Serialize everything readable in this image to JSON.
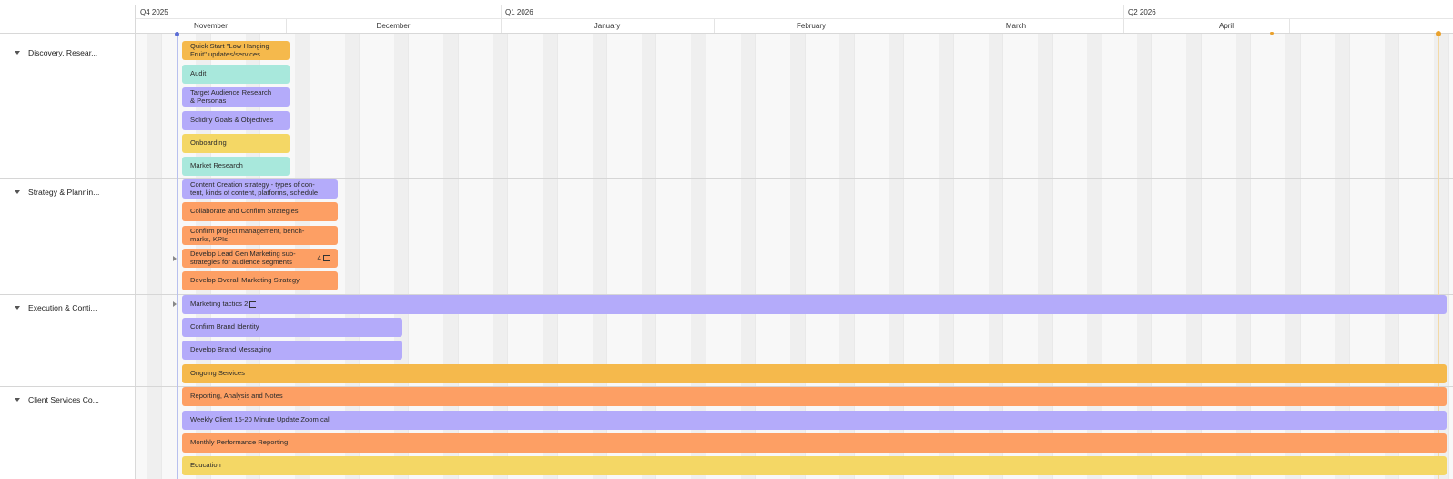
{
  "timeline": {
    "quarters": [
      "Q4 2025",
      "Q1 2026",
      "Q2 2026"
    ],
    "months": [
      "November",
      "December",
      "January",
      "February",
      "March",
      "April"
    ],
    "groups": [
      {
        "label": "Discovery, Resear...",
        "collapsed": false
      },
      {
        "label": "Strategy & Plannin...",
        "collapsed": false
      },
      {
        "label": "Execution & Conti...",
        "collapsed": false
      },
      {
        "label": "Client Services Co...",
        "collapsed": false
      }
    ],
    "tasks": [
      {
        "label": "Quick Start \"Low Hanging\nFruit\" updates/services",
        "color": "#f5b94c"
      },
      {
        "label": "Audit",
        "color": "#a8e8dc"
      },
      {
        "label": "Target Audience Research\n& Personas",
        "color": "#b4abfa"
      },
      {
        "label": "Solidify Goals & Objectives",
        "color": "#b4abfa"
      },
      {
        "label": "Onboarding",
        "color": "#f4d765"
      },
      {
        "label": "Market Research",
        "color": "#a8e8dc"
      },
      {
        "label": "Content Creation strategy - types of con-\ntent, kinds of content, platforms, schedule",
        "color": "#b4abfa"
      },
      {
        "label": "Collaborate and Confirm Strategies",
        "color": "#fd9f64"
      },
      {
        "label": "Confirm project management, bench-\nmarks, KPIs",
        "color": "#fd9f64"
      },
      {
        "label": "Develop Lead Gen Marketing sub-\nstrategies for audience segments",
        "subtask_count": "4",
        "color": "#fd9f64"
      },
      {
        "label": "Develop Overall Marketing Strategy",
        "color": "#fd9f64"
      },
      {
        "label": "Marketing tactics 2",
        "color": "#b4abfa"
      },
      {
        "label": "Confirm Brand Identity",
        "color": "#b4abfa"
      },
      {
        "label": "Develop Brand Messaging",
        "color": "#b4abfa"
      },
      {
        "label": "Ongoing Services",
        "color": "#f5b94c"
      },
      {
        "label": "Reporting, Analysis and Notes",
        "color": "#fd9f64"
      },
      {
        "label": "Weekly Client 15-20 Minute Update Zoom call",
        "color": "#b4abfa"
      },
      {
        "label": "Monthly Performance Reporting",
        "color": "#fd9f64"
      },
      {
        "label": "Education",
        "color": "#f4d765"
      }
    ],
    "today_marker_color": "#5b6dd6",
    "milestone_color": "#e9a12d"
  }
}
